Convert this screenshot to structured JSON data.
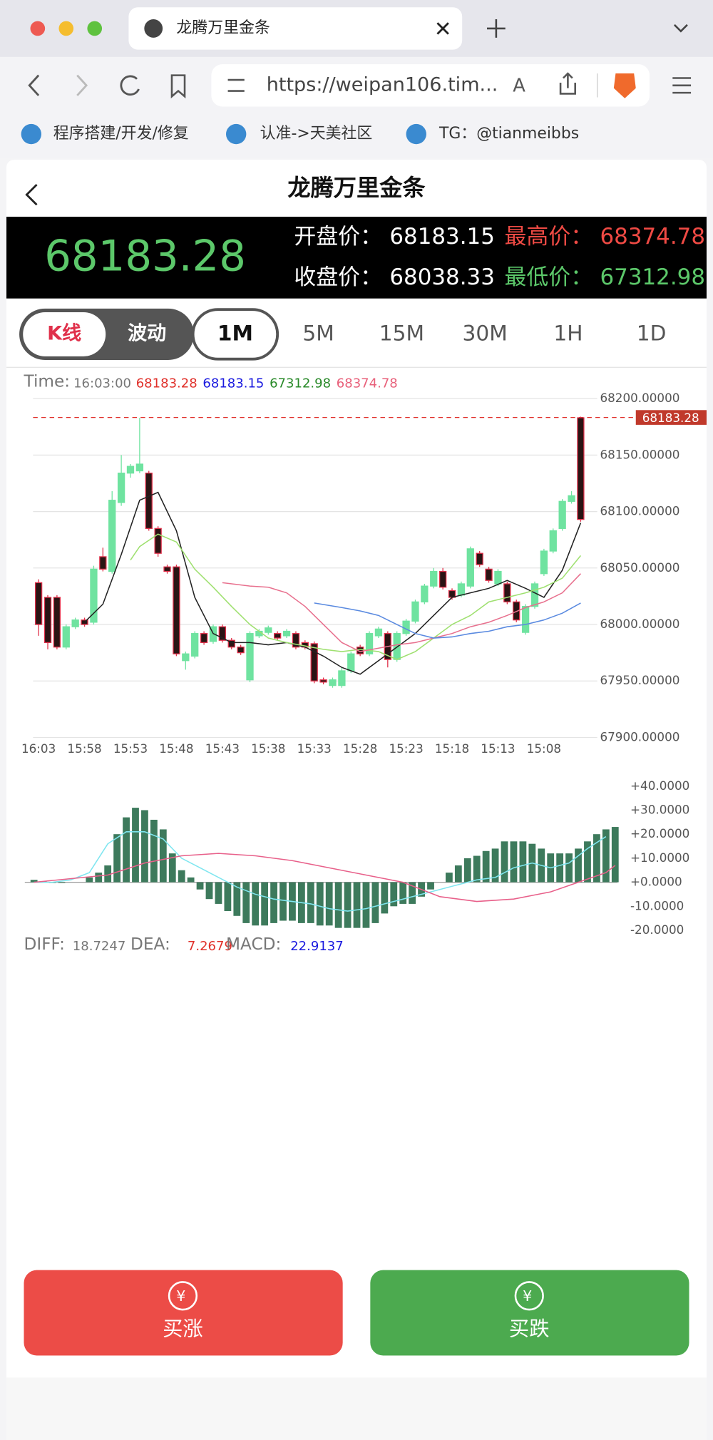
{
  "browser": {
    "tab_title": "龙腾万里金条",
    "url": "https://weipan106.tim...",
    "bookmarks": [
      "程序搭建/开发/修复",
      "认准->天美社区",
      "TG：@tianmeibbs"
    ]
  },
  "header": {
    "title": "龙腾万里金条"
  },
  "quote": {
    "price": 68183.28,
    "open_label": "开盘价：",
    "open": 68183.15,
    "high_label": "最高价：",
    "high": 68374.78,
    "close_label": "收盘价：",
    "close": 68038.33,
    "low_label": "最低价：",
    "low": 67312.98
  },
  "tabs": [
    "K线",
    "波动"
  ],
  "periods": [
    "1M",
    "5M",
    "15M",
    "30M",
    "1H",
    "1D"
  ],
  "chart_data": [
    {
      "type": "candlestick",
      "info": {
        "label": "Time:",
        "time": "16:03:00",
        "values": [
          68183.28,
          68183.15,
          67312.98,
          68374.78
        ],
        "colors": [
          "#e0302a",
          "#1a1adf",
          "#2a8a2a",
          "#e8607a"
        ]
      },
      "xtick_labels": [
        "16:03",
        "15:58",
        "15:53",
        "15:48",
        "15:43",
        "15:38",
        "15:33",
        "15:28",
        "15:23",
        "15:18",
        "15:13",
        "15:08"
      ],
      "ylim": [
        67900,
        68200
      ],
      "yticks": [
        {
          "value": 67900,
          "label": "67900.00000"
        },
        {
          "value": 67950,
          "label": "67950.00000"
        },
        {
          "value": 68000,
          "label": "68000.00000"
        },
        {
          "value": 68050,
          "label": "68050.00000"
        },
        {
          "value": 68100,
          "label": "68100.00000"
        },
        {
          "value": 68150,
          "label": "68150.00000"
        },
        {
          "value": 68200,
          "label": "68200.00000"
        }
      ],
      "grid": true,
      "last_price": 68183.28,
      "up_color": "#e0304a",
      "down_color": "#6fe3a0",
      "open": [
        68000,
        67984,
        67980,
        67998,
        68004,
        68000,
        68049,
        68049,
        68110,
        68134,
        68140,
        68142,
        68085,
        68063,
        68047,
        67974,
        67974,
        67992,
        67984,
        67998,
        67986,
        67980,
        67975,
        67992,
        67994,
        67997,
        67988,
        67994,
        67980,
        67980,
        67950,
        67949,
        67951,
        67959,
        67974,
        67974,
        67992,
        67996,
        67969,
        67992,
        68003,
        68020,
        68034,
        68047,
        68033,
        68024,
        68036,
        68067,
        68053,
        68039,
        68047,
        68020,
        68004,
        68016,
        68036,
        68065,
        68083,
        68109,
        68114,
        68093
      ],
      "high": [
        68040,
        68026,
        68026,
        68000,
        68006,
        68006,
        68052,
        68068,
        68118,
        68150,
        68142,
        68183,
        68136,
        68087,
        68053,
        68053,
        67976,
        67994,
        67994,
        68000,
        68000,
        67988,
        67982,
        67994,
        67996,
        67999,
        67994,
        67996,
        67994,
        67986,
        67985,
        67953,
        67953,
        67962,
        67976,
        67982,
        67994,
        67998,
        67994,
        67994,
        68005,
        68022,
        68036,
        68050,
        68050,
        68032,
        68038,
        68069,
        68065,
        68051,
        68049,
        68038,
        68022,
        68018,
        68038,
        68067,
        68085,
        68111,
        68118,
        68184
      ],
      "low": [
        67990,
        67978,
        67978,
        67978,
        67996,
        67998,
        68000,
        68047,
        68045,
        68105,
        68130,
        68134,
        68083,
        68060,
        68045,
        67972,
        67960,
        67970,
        67982,
        67983,
        67984,
        67978,
        67973,
        67949,
        67988,
        67991,
        67986,
        67988,
        67978,
        67978,
        67948,
        67947,
        67944,
        67944,
        67957,
        67972,
        67972,
        67988,
        67962,
        67967,
        67990,
        68001,
        68018,
        68032,
        68031,
        68022,
        68024,
        68032,
        68051,
        68037,
        68034,
        68018,
        68002,
        67991,
        68014,
        68043,
        68063,
        68083,
        68107,
        68091
      ],
      "close": [
        68037,
        68024,
        68024,
        67980,
        67998,
        68004,
        68002,
        68060,
        68047,
        68108,
        68134,
        68136,
        68134,
        68085,
        68051,
        68051,
        67968,
        67972,
        67992,
        67985,
        67998,
        67986,
        67980,
        67951,
        67990,
        67993,
        67992,
        67990,
        67992,
        67984,
        67983,
        67951,
        67946,
        67946,
        67959,
        67980,
        67974,
        67990,
        67992,
        67969,
        67992,
        68003,
        68020,
        68034,
        68047,
        68030,
        68026,
        68034,
        68063,
        68049,
        68036,
        68036,
        68020,
        67993,
        68016,
        68045,
        68065,
        68085,
        68109,
        68183
      ],
      "series": [
        {
          "color": "#222222",
          "x": [
            5,
            7,
            9,
            11,
            13,
            15,
            17,
            19,
            21,
            23,
            25,
            27,
            29,
            31,
            33,
            35,
            37,
            39,
            41,
            43,
            45,
            47,
            49,
            51,
            53,
            55,
            57,
            59
          ],
          "values": [
            68002,
            68018,
            68062,
            68110,
            68117,
            68083,
            68024,
            67992,
            67984,
            67984,
            67982,
            67984,
            67980,
            67972,
            67962,
            67956,
            67968,
            67980,
            67992,
            68008,
            68024,
            68028,
            68032,
            68039,
            68032,
            68024,
            68048,
            68090
          ]
        },
        {
          "color": "#9fe070",
          "x": [
            10,
            11,
            13,
            15,
            17,
            19,
            21,
            23,
            25,
            27,
            29,
            31,
            33,
            35,
            37,
            39,
            41,
            43,
            45,
            47,
            49,
            51,
            53,
            55,
            57,
            59
          ],
          "values": [
            68057,
            68069,
            68080,
            68073,
            68049,
            68033,
            68016,
            68000,
            67988,
            67984,
            67981,
            67978,
            67976,
            67978,
            67976,
            67969,
            67976,
            67988,
            68000,
            68008,
            68020,
            68024,
            68028,
            68033,
            68041,
            68061
          ]
        },
        {
          "color": "#e8708e",
          "x": [
            20,
            23,
            25,
            27,
            29,
            31,
            33,
            35,
            37,
            39,
            41,
            43,
            45,
            47,
            49,
            51,
            53,
            55,
            57,
            59
          ],
          "values": [
            68037,
            68034,
            68033,
            68028,
            68016,
            68000,
            67984,
            67976,
            67979,
            67982,
            67984,
            67988,
            67992,
            67998,
            68002,
            68008,
            68015,
            68020,
            68028,
            68045
          ]
        },
        {
          "color": "#5a8ae0",
          "x": [
            30,
            33,
            35,
            37,
            39,
            41,
            43,
            45,
            47,
            49,
            51,
            53,
            55,
            57,
            59
          ],
          "values": [
            68019,
            68015,
            68012,
            68008,
            68000,
            67992,
            67988,
            67989,
            67992,
            67994,
            67998,
            68000,
            68004,
            68010,
            68019
          ]
        }
      ]
    },
    {
      "type": "bar",
      "ylim": [
        -20,
        40
      ],
      "yticks": [
        {
          "value": 40,
          "label": "+40.0000"
        },
        {
          "value": 30,
          "label": "+30.0000"
        },
        {
          "value": 20,
          "label": "+20.0000"
        },
        {
          "value": 10,
          "label": "+10.0000"
        },
        {
          "value": 0,
          "label": "+0.0000"
        },
        {
          "value": -10,
          "label": "-10.0000"
        },
        {
          "value": -20,
          "label": "-20.0000"
        }
      ],
      "color": "#3d7a5c",
      "values": [
        1,
        0.3,
        -0.3,
        -0.3,
        0,
        0,
        2,
        4,
        7,
        20,
        27,
        31,
        30,
        26,
        22,
        12,
        5,
        2,
        -3,
        -7,
        -9,
        -12,
        -14,
        -17,
        -18,
        -18,
        -17,
        -16,
        -16,
        -17,
        -17,
        -18,
        -18,
        -19,
        -19,
        -19,
        -19,
        -17,
        -13,
        -10,
        -9,
        -9,
        -6,
        -3,
        0,
        4,
        7,
        10,
        11,
        13,
        14,
        17,
        17,
        17,
        16,
        14,
        12,
        12,
        12,
        14,
        17,
        20,
        22,
        23
      ],
      "series": [
        {
          "color": "#7fe6f0",
          "x": [
            0,
            2,
            4,
            6,
            8,
            10,
            12,
            14,
            16,
            18,
            20,
            22,
            24,
            26,
            28,
            30,
            32,
            34,
            36,
            38,
            40,
            42,
            44,
            46,
            48,
            50,
            52,
            54,
            56,
            58,
            60,
            62
          ],
          "values": [
            0,
            0,
            1,
            4,
            16,
            21,
            21,
            18,
            10,
            6,
            2,
            -2,
            -5,
            -7,
            -8,
            -9,
            -11,
            -12,
            -11,
            -9,
            -7,
            -5,
            -3,
            -1,
            1,
            2,
            6,
            8,
            6,
            8,
            14,
            19
          ]
        },
        {
          "color": "#e8608a",
          "x": [
            0,
            8,
            12,
            16,
            20,
            24,
            28,
            32,
            36,
            40,
            44,
            48,
            52,
            56,
            59,
            62,
            63
          ],
          "values": [
            0,
            3,
            8,
            11,
            12,
            11,
            9,
            6,
            3,
            0,
            -6,
            -8,
            -7,
            -4,
            0,
            4,
            7
          ]
        }
      ],
      "legend": [
        {
          "label": "DIFF:",
          "value": 18.7247,
          "color": "#777777"
        },
        {
          "label": "DEA:",
          "value": 7.2679,
          "color": "#e0302a"
        },
        {
          "label": "MACD:",
          "value": 22.9137,
          "color": "#1a1adf"
        }
      ]
    }
  ],
  "buttons": [
    "买涨",
    "买跌"
  ]
}
